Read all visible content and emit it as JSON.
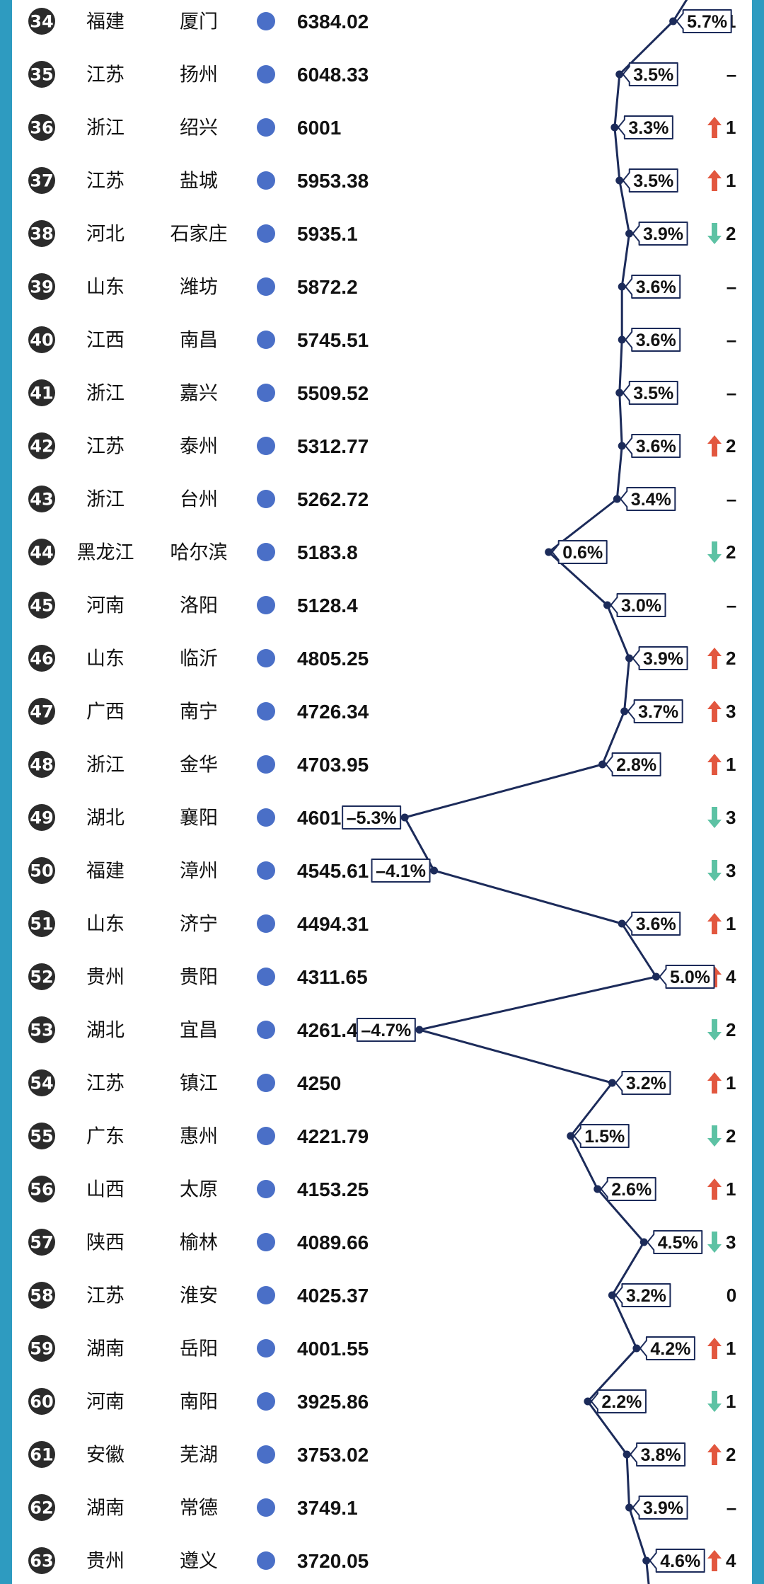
{
  "chart_data": {
    "type": "table",
    "columns": [
      "rank",
      "province",
      "city",
      "gdp",
      "growth",
      "rank_change"
    ],
    "colors": {
      "background": "#2E9BC0",
      "rank_badge": "#2B2B2B",
      "dot": "#4A6FC7",
      "line": "#1C2B5A",
      "up": "#E2573F",
      "down": "#5DC2A4"
    },
    "rows": [
      {
        "rank": "34",
        "province": "福建",
        "city": "厦门",
        "gdp": "6384.02",
        "growth": 5.7,
        "growth_label": "5.7%",
        "change_dir": "down",
        "change_text": "1"
      },
      {
        "rank": "35",
        "province": "江苏",
        "city": "扬州",
        "gdp": "6048.33",
        "growth": 3.5,
        "growth_label": "3.5%",
        "change_dir": "none",
        "change_text": "–"
      },
      {
        "rank": "36",
        "province": "浙江",
        "city": "绍兴",
        "gdp": "6001",
        "growth": 3.3,
        "growth_label": "3.3%",
        "change_dir": "up",
        "change_text": "1"
      },
      {
        "rank": "37",
        "province": "江苏",
        "city": "盐城",
        "gdp": "5953.38",
        "growth": 3.5,
        "growth_label": "3.5%",
        "change_dir": "up",
        "change_text": "1"
      },
      {
        "rank": "38",
        "province": "河北",
        "city": "石家庄",
        "gdp": "5935.1",
        "growth": 3.9,
        "growth_label": "3.9%",
        "change_dir": "down",
        "change_text": "2"
      },
      {
        "rank": "39",
        "province": "山东",
        "city": "潍坊",
        "gdp": "5872.2",
        "growth": 3.6,
        "growth_label": "3.6%",
        "change_dir": "none",
        "change_text": "–"
      },
      {
        "rank": "40",
        "province": "江西",
        "city": "南昌",
        "gdp": "5745.51",
        "growth": 3.6,
        "growth_label": "3.6%",
        "change_dir": "none",
        "change_text": "–"
      },
      {
        "rank": "41",
        "province": "浙江",
        "city": "嘉兴",
        "gdp": "5509.52",
        "growth": 3.5,
        "growth_label": "3.5%",
        "change_dir": "none",
        "change_text": "–"
      },
      {
        "rank": "42",
        "province": "江苏",
        "city": "泰州",
        "gdp": "5312.77",
        "growth": 3.6,
        "growth_label": "3.6%",
        "change_dir": "up",
        "change_text": "2"
      },
      {
        "rank": "43",
        "province": "浙江",
        "city": "台州",
        "gdp": "5262.72",
        "growth": 3.4,
        "growth_label": "3.4%",
        "change_dir": "none",
        "change_text": "–"
      },
      {
        "rank": "44",
        "province": "黑龙江",
        "city": "哈尔滨",
        "gdp": "5183.8",
        "growth": 0.6,
        "growth_label": "0.6%",
        "change_dir": "down",
        "change_text": "2"
      },
      {
        "rank": "45",
        "province": "河南",
        "city": "洛阳",
        "gdp": "5128.4",
        "growth": 3.0,
        "growth_label": "3.0%",
        "change_dir": "none",
        "change_text": "–"
      },
      {
        "rank": "46",
        "province": "山东",
        "city": "临沂",
        "gdp": "4805.25",
        "growth": 3.9,
        "growth_label": "3.9%",
        "change_dir": "up",
        "change_text": "2"
      },
      {
        "rank": "47",
        "province": "广西",
        "city": "南宁",
        "gdp": "4726.34",
        "growth": 3.7,
        "growth_label": "3.7%",
        "change_dir": "up",
        "change_text": "3"
      },
      {
        "rank": "48",
        "province": "浙江",
        "city": "金华",
        "gdp": "4703.95",
        "growth": 2.8,
        "growth_label": "2.8%",
        "change_dir": "up",
        "change_text": "1"
      },
      {
        "rank": "49",
        "province": "湖北",
        "city": "襄阳",
        "gdp": "4601.97",
        "growth": -5.3,
        "growth_label": "–5.3%",
        "change_dir": "down",
        "change_text": "3"
      },
      {
        "rank": "50",
        "province": "福建",
        "city": "漳州",
        "gdp": "4545.61",
        "growth": -4.1,
        "growth_label": "–4.1%",
        "change_dir": "down",
        "change_text": "3"
      },
      {
        "rank": "51",
        "province": "山东",
        "city": "济宁",
        "gdp": "4494.31",
        "growth": 3.6,
        "growth_label": "3.6%",
        "change_dir": "up",
        "change_text": "1"
      },
      {
        "rank": "52",
        "province": "贵州",
        "city": "贵阳",
        "gdp": "4311.65",
        "growth": 5.0,
        "growth_label": "5.0%",
        "change_dir": "up",
        "change_text": "4"
      },
      {
        "rank": "53",
        "province": "湖北",
        "city": "宜昌",
        "gdp": "4261.42",
        "growth": -4.7,
        "growth_label": "–4.7%",
        "change_dir": "down",
        "change_text": "2"
      },
      {
        "rank": "54",
        "province": "江苏",
        "city": "镇江",
        "gdp": "4250",
        "growth": 3.2,
        "growth_label": "3.2%",
        "change_dir": "up",
        "change_text": "1"
      },
      {
        "rank": "55",
        "province": "广东",
        "city": "惠州",
        "gdp": "4221.79",
        "growth": 1.5,
        "growth_label": "1.5%",
        "change_dir": "down",
        "change_text": "2"
      },
      {
        "rank": "56",
        "province": "山西",
        "city": "太原",
        "gdp": "4153.25",
        "growth": 2.6,
        "growth_label": "2.6%",
        "change_dir": "up",
        "change_text": "1"
      },
      {
        "rank": "57",
        "province": "陕西",
        "city": "榆林",
        "gdp": "4089.66",
        "growth": 4.5,
        "growth_label": "4.5%",
        "change_dir": "down",
        "change_text": "3"
      },
      {
        "rank": "58",
        "province": "江苏",
        "city": "淮安",
        "gdp": "4025.37",
        "growth": 3.2,
        "growth_label": "3.2%",
        "change_dir": "none",
        "change_text": "0"
      },
      {
        "rank": "59",
        "province": "湖南",
        "city": "岳阳",
        "gdp": "4001.55",
        "growth": 4.2,
        "growth_label": "4.2%",
        "change_dir": "up",
        "change_text": "1"
      },
      {
        "rank": "60",
        "province": "河南",
        "city": "南阳",
        "gdp": "3925.86",
        "growth": 2.2,
        "growth_label": "2.2%",
        "change_dir": "down",
        "change_text": "1"
      },
      {
        "rank": "61",
        "province": "安徽",
        "city": "芜湖",
        "gdp": "3753.02",
        "growth": 3.8,
        "growth_label": "3.8%",
        "change_dir": "up",
        "change_text": "2"
      },
      {
        "rank": "62",
        "province": "湖南",
        "city": "常德",
        "gdp": "3749.1",
        "growth": 3.9,
        "growth_label": "3.9%",
        "change_dir": "none",
        "change_text": "–"
      },
      {
        "rank": "63",
        "province": "贵州",
        "city": "遵义",
        "gdp": "3720.05",
        "growth": 4.6,
        "growth_label": "4.6%",
        "change_dir": "up",
        "change_text": "4"
      }
    ],
    "growth_axis_range": [
      -5.5,
      6.0
    ]
  }
}
